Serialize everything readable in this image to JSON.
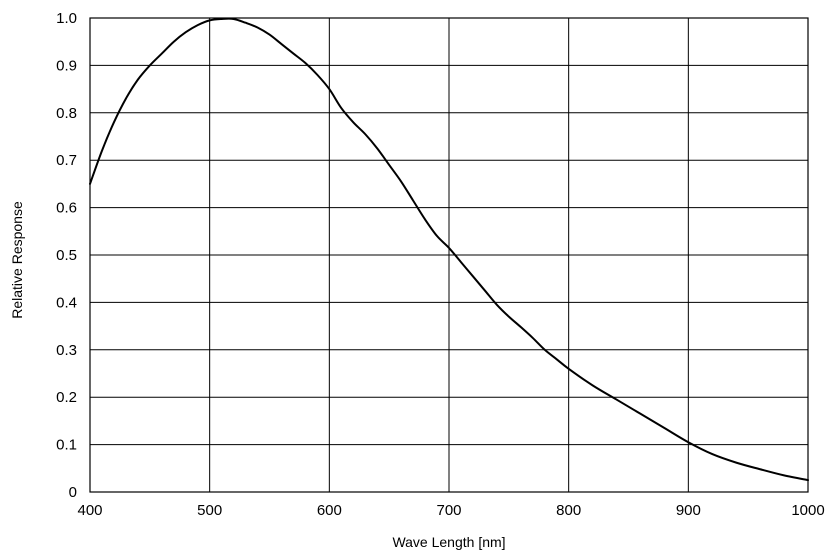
{
  "chart_data": {
    "type": "line",
    "title": "",
    "xlabel": "Wave Length [nm]",
    "ylabel": "Relative Response",
    "xlim": [
      400,
      1000
    ],
    "ylim": [
      0,
      1.0
    ],
    "x_ticks": [
      "400",
      "500",
      "600",
      "700",
      "800",
      "900",
      "1000"
    ],
    "y_ticks": [
      "0",
      "0.1",
      "0.2",
      "0.3",
      "0.4",
      "0.5",
      "0.6",
      "0.7",
      "0.8",
      "0.9",
      "1.0"
    ],
    "x_tick_values": [
      400,
      500,
      600,
      700,
      800,
      900,
      1000
    ],
    "y_tick_values": [
      0,
      0.1,
      0.2,
      0.3,
      0.4,
      0.5,
      0.6,
      0.7,
      0.8,
      0.9,
      1.0
    ],
    "grid": true,
    "line_color": "#000000",
    "series": [
      {
        "x": [
          400,
          410,
          420,
          430,
          440,
          450,
          460,
          470,
          480,
          490,
          500,
          510,
          520,
          530,
          540,
          550,
          560,
          570,
          580,
          590,
          600,
          610,
          620,
          630,
          640,
          650,
          660,
          670,
          680,
          690,
          700,
          710,
          720,
          730,
          740,
          750,
          760,
          770,
          780,
          790,
          800,
          820,
          840,
          860,
          880,
          900,
          920,
          940,
          960,
          980,
          1000
        ],
        "y": [
          0.65,
          0.72,
          0.78,
          0.83,
          0.87,
          0.9,
          0.925,
          0.95,
          0.97,
          0.985,
          0.995,
          0.998,
          0.998,
          0.99,
          0.98,
          0.965,
          0.945,
          0.925,
          0.905,
          0.88,
          0.85,
          0.81,
          0.78,
          0.755,
          0.725,
          0.69,
          0.655,
          0.615,
          0.575,
          0.54,
          0.515,
          0.485,
          0.455,
          0.425,
          0.395,
          0.37,
          0.348,
          0.325,
          0.3,
          0.28,
          0.26,
          0.225,
          0.195,
          0.165,
          0.135,
          0.105,
          0.08,
          0.062,
          0.048,
          0.035,
          0.025
        ]
      }
    ]
  }
}
